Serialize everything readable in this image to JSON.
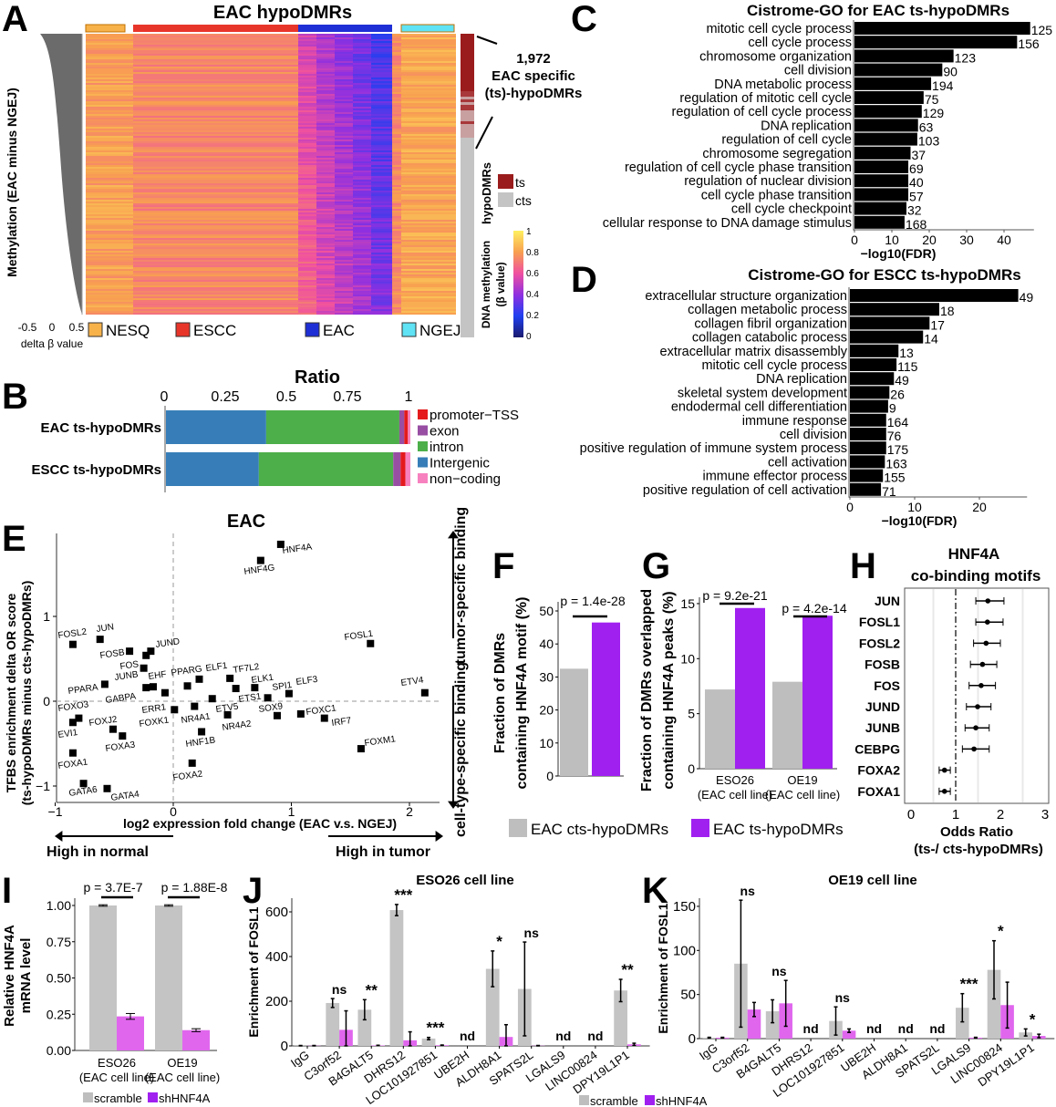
{
  "panel_letters": [
    "A",
    "B",
    "C",
    "D",
    "E",
    "F",
    "G",
    "H",
    "I",
    "J",
    "K"
  ],
  "panel_a": {
    "title": "EAC hypoDMRs",
    "y_label": "Methylation (EAC minus NGEJ)",
    "x_label": "delta β value",
    "x_ticks": [
      "-0.5",
      "0",
      "0.5"
    ],
    "groups": [
      {
        "name": "NESQ",
        "color": "#f7b24a"
      },
      {
        "name": "ESCC",
        "color": "#e8352a"
      },
      {
        "name": "EAC",
        "color": "#1f2fd6"
      },
      {
        "name": "NGEJ",
        "color": "#5fe3f5"
      }
    ],
    "annotation": [
      "1,972",
      "EAC specific",
      "(ts)-hypoDMRs"
    ],
    "hypo_label": "hypoDMRs",
    "hypo_legend": [
      {
        "name": "ts",
        "color": "#9b1c1c"
      },
      {
        "name": "cts",
        "color": "#c4c4c4"
      }
    ],
    "colorbar_label": [
      "DNA methylation",
      "(β value)"
    ],
    "colorbar_ticks": [
      "1",
      "0.8",
      "0.6",
      "0.4",
      "0.2",
      "0"
    ]
  },
  "chart_data": [
    {
      "panel": "B",
      "type": "bar",
      "orientation": "horizontal-stacked",
      "title": "Ratio",
      "x_ticks": [
        "0",
        "0.25",
        "0.5",
        "0.75",
        "1"
      ],
      "xlim": [
        0,
        1
      ],
      "categories": [
        "EAC ts-hypoDMRs",
        "ESCC ts-hypoDMRs"
      ],
      "legend": [
        {
          "name": "promoter−TSS",
          "color": "#e41a1c"
        },
        {
          "name": "exon",
          "color": "#984ea3"
        },
        {
          "name": "intron",
          "color": "#4daf4a"
        },
        {
          "name": "Intergenic",
          "color": "#377eb8"
        },
        {
          "name": "non−coding",
          "color": "#f781bf"
        }
      ],
      "series": [
        {
          "name": "Intergenic",
          "values": [
            0.41,
            0.38
          ]
        },
        {
          "name": "intron",
          "values": [
            0.545,
            0.55
          ]
        },
        {
          "name": "exon",
          "values": [
            0.02,
            0.03
          ]
        },
        {
          "name": "promoter−TSS",
          "values": [
            0.015,
            0.02
          ]
        },
        {
          "name": "non−coding",
          "values": [
            0.01,
            0.02
          ]
        }
      ]
    },
    {
      "panel": "C",
      "type": "bar",
      "orientation": "horizontal",
      "title": "Cistrome-GO for EAC ts-hypoDMRs",
      "xlabel": "−log10(FDR)",
      "x_ticks": [
        "0",
        "10",
        "20",
        "30",
        "40"
      ],
      "xlim": [
        0,
        48
      ],
      "categories": [
        "mitotic cell cycle process",
        "cell cycle process",
        "chromosome organization",
        "cell division",
        "DNA metabolic process",
        "regulation of mitotic cell cycle",
        "regulation of cell cycle process",
        "DNA replication",
        "regulation of cell cycle",
        "chromosome segregation",
        "regulation of cell cycle phase transition",
        "regulation of nuclear division",
        "cell cycle phase transition",
        "cell cycle checkpoint",
        "cellular response to DNA damage stimulus"
      ],
      "values": [
        47,
        43.5,
        26.5,
        23.5,
        20.5,
        18.5,
        18,
        17,
        16.8,
        15,
        14.4,
        14.4,
        14.4,
        13.9,
        13.4
      ],
      "labels": [
        "125",
        "156",
        "123",
        "90",
        "194",
        "75",
        "129",
        "63",
        "103",
        "37",
        "69",
        "40",
        "57",
        "32",
        "168"
      ]
    },
    {
      "panel": "D",
      "type": "bar",
      "orientation": "horizontal",
      "title": "Cistrome-GO for ESCC ts-hypoDMRs",
      "xlabel": "−log10(FDR)",
      "x_ticks": [
        "0",
        "10",
        "20"
      ],
      "xlim": [
        0,
        27
      ],
      "categories": [
        "extracellular structure organization",
        "collagen metabolic process",
        "collagen fibril organization",
        "collagen catabolic process",
        "extracellular matrix disassembly",
        "mitotic cell cycle process",
        "DNA replication",
        "skeletal system development",
        "endodermal cell differentiation",
        "immune response",
        "cell division",
        "positive regulation of immune system process",
        "cell activation",
        "immune effector process",
        "positive regulation of cell activation"
      ],
      "values": [
        26,
        13.8,
        12.3,
        11.3,
        7.5,
        7.2,
        6.8,
        6.1,
        5.9,
        5.6,
        5.6,
        5.6,
        5.4,
        5.1,
        4.8
      ],
      "labels": [
        "49",
        "18",
        "17",
        "14",
        "13",
        "115",
        "49",
        "26",
        "9",
        "164",
        "76",
        "175",
        "163",
        "155",
        "71"
      ]
    },
    {
      "panel": "E",
      "type": "scatter",
      "title": "EAC",
      "xlabel": "log2 expression fold change (EAC v.s. NGEJ)",
      "ylabel": [
        "TFBS enrichment delta OR score",
        "(ts-hypoDMRs minus cts-hypoDMRs)"
      ],
      "x_ticks": [
        "−1",
        "0",
        "1",
        "2"
      ],
      "y_ticks": [
        "1",
        "0",
        "−1"
      ],
      "xlim": [
        -1,
        2.25
      ],
      "ylim": [
        -1.15,
        1.95
      ],
      "annotations": {
        "top": "tumor-specific binding",
        "bottom": "cell-type-specific binding",
        "left": "High in normal",
        "right": "High in tumor"
      },
      "points": [
        {
          "label": "HNF4A",
          "x": 0.91,
          "y": 1.85
        },
        {
          "label": "HNF4G",
          "x": 0.74,
          "y": 1.66
        },
        {
          "label": "FOSL2",
          "x": -0.85,
          "y": 0.67
        },
        {
          "label": "JUN",
          "x": -0.62,
          "y": 0.73
        },
        {
          "label": "FOSB",
          "x": -0.37,
          "y": 0.59
        },
        {
          "label": "JUND",
          "x": -0.19,
          "y": 0.59
        },
        {
          "label": "FOS",
          "x": -0.23,
          "y": 0.54
        },
        {
          "label": "JUNB",
          "x": -0.25,
          "y": 0.39
        },
        {
          "label": "PPARA",
          "x": -0.58,
          "y": 0.2
        },
        {
          "label": "GABPA",
          "x": -0.23,
          "y": 0.16
        },
        {
          "label": "EHF",
          "x": -0.17,
          "y": 0.17
        },
        {
          "label": "ERR1",
          "x": -0.07,
          "y": 0.1
        },
        {
          "label": "PPARG",
          "x": 0.12,
          "y": 0.18
        },
        {
          "label": "ELF1",
          "x": 0.22,
          "y": 0.26
        },
        {
          "label": "TF7L2",
          "x": 0.48,
          "y": 0.27
        },
        {
          "label": "ETV5",
          "x": 0.33,
          "y": 0.03
        },
        {
          "label": "ETS1",
          "x": 0.53,
          "y": 0.15
        },
        {
          "label": "ELK1",
          "x": 0.69,
          "y": 0.16
        },
        {
          "label": "SPI1",
          "x": 0.8,
          "y": 0.04
        },
        {
          "label": "ELF3",
          "x": 0.98,
          "y": 0.09
        },
        {
          "label": "ETV4",
          "x": 2.13,
          "y": 0.1
        },
        {
          "label": "FOSL1",
          "x": 1.67,
          "y": 0.68
        },
        {
          "label": "FOXO3",
          "x": -0.8,
          "y": -0.2
        },
        {
          "label": "EVI1",
          "x": -0.85,
          "y": -0.25
        },
        {
          "label": "FOXJ2",
          "x": -0.51,
          "y": -0.33
        },
        {
          "label": "FOXA3",
          "x": -0.43,
          "y": -0.41
        },
        {
          "label": "FOXK1",
          "x": 0.01,
          "y": -0.1
        },
        {
          "label": "NR4A1",
          "x": 0.18,
          "y": -0.06
        },
        {
          "label": "NR4A2",
          "x": 0.46,
          "y": -0.16
        },
        {
          "label": "HNF1B",
          "x": 0.24,
          "y": -0.36
        },
        {
          "label": "SOX9",
          "x": 0.88,
          "y": -0.17
        },
        {
          "label": "FOXC1",
          "x": 1.08,
          "y": -0.15
        },
        {
          "label": "IRF7",
          "x": 1.28,
          "y": -0.2
        },
        {
          "label": "FOXM1",
          "x": 1.59,
          "y": -0.56
        },
        {
          "label": "FOXA1",
          "x": -0.85,
          "y": -0.61
        },
        {
          "label": "FOXA2",
          "x": 0.16,
          "y": -0.73
        },
        {
          "label": "GATA6",
          "x": -0.76,
          "y": -0.97
        },
        {
          "label": "GATA4",
          "x": -0.56,
          "y": -1.03
        }
      ]
    },
    {
      "panel": "F",
      "type": "bar",
      "ylabel": [
        "Fraction of DMRs",
        "containing HNF4A motif (%)"
      ],
      "y_ticks": [
        "0",
        "10",
        "20",
        "30",
        "40",
        "50"
      ],
      "ylim": [
        0,
        50
      ],
      "series": [
        {
          "name": "EAC cts-hypoDMRs",
          "values": [
            32.5
          ]
        },
        {
          "name": "EAC ts-hypoDMRs",
          "values": [
            46.5
          ]
        }
      ],
      "pvalue": "p = 1.4e-28"
    },
    {
      "panel": "G",
      "type": "bar",
      "ylabel": [
        "Fraction of DMRs overlapped",
        "containing HNF4A peaks (%)"
      ],
      "y_ticks": [
        "0",
        "5",
        "10",
        "15"
      ],
      "ylim": [
        0,
        15
      ],
      "categories": [
        [
          "ESO26",
          "(EAC cell line)"
        ],
        [
          "OE19",
          "(EAC cell line)"
        ]
      ],
      "series": [
        {
          "name": "EAC cts-hypoDMRs",
          "values": [
            7.2,
            7.9
          ]
        },
        {
          "name": "EAC ts-hypoDMRs",
          "values": [
            14.6,
            13.9
          ]
        }
      ],
      "pvalues": [
        "p = 9.2e-21",
        "p = 4.2e-14"
      ]
    },
    {
      "panel": "H",
      "type": "scatter",
      "subtype": "forest",
      "title": [
        "HNF4A",
        "co-binding motifs"
      ],
      "xlabel": [
        "Odds Ratio",
        "(ts-/ cts-hypoDMRs)"
      ],
      "x_ticks": [
        "0",
        "1",
        "2",
        "3"
      ],
      "xlim": [
        0,
        3
      ],
      "reference_line": 1,
      "categories": [
        "JUN",
        "FOSL1",
        "FOSL2",
        "FOSB",
        "FOS",
        "JUND",
        "JUNB",
        "CEBPG",
        "FOXA2",
        "FOXA1"
      ],
      "values": [
        1.72,
        1.71,
        1.68,
        1.6,
        1.57,
        1.49,
        1.45,
        1.41,
        0.75,
        0.75
      ],
      "ci_low": [
        1.45,
        1.45,
        1.4,
        1.33,
        1.3,
        1.24,
        1.21,
        1.15,
        0.63,
        0.63
      ],
      "ci_high": [
        2.08,
        2.06,
        2.0,
        1.92,
        1.89,
        1.79,
        1.75,
        1.75,
        0.88,
        0.88
      ]
    },
    {
      "panel": "I",
      "type": "bar",
      "ylabel": [
        "Relative HNF4A",
        "mRNA level"
      ],
      "y_ticks": [
        "0.00",
        "0.25",
        "0.50",
        "0.75",
        "1.00"
      ],
      "ylim": [
        0,
        1
      ],
      "categories": [
        [
          "ESO26",
          "(EAC cell line)"
        ],
        [
          "OE19",
          "(EAC cell line)"
        ]
      ],
      "series": [
        {
          "name": "scramble",
          "values": [
            1.0,
            1.0
          ],
          "err": [
            0.005,
            0.005
          ]
        },
        {
          "name": "shHNF4A",
          "values": [
            0.235,
            0.14
          ],
          "err": [
            0.02,
            0.01
          ]
        }
      ],
      "pvalues": [
        "p = 3.7E-7",
        "p = 1.88E-8"
      ]
    },
    {
      "panel": "J",
      "type": "bar",
      "title": "ESO26 cell line",
      "ylabel": "Enrichment of FOSL1",
      "y_ticks": [
        "0",
        "200",
        "400",
        "600"
      ],
      "ylim": [
        0,
        650
      ],
      "categories": [
        "IgG",
        "C3orf52",
        "B4GALT5",
        "DHRS12",
        "LOC101927851",
        "UBE2H",
        "ALDH8A1",
        "SPATS2L",
        "LGALS9",
        "LINC00824",
        "DPY19L1P1"
      ],
      "series": [
        {
          "name": "scramble",
          "values": [
            1,
            192,
            162,
            608,
            33,
            0,
            345,
            255,
            0,
            0,
            248
          ],
          "err": [
            1,
            20,
            45,
            25,
            5,
            0,
            80,
            210,
            0,
            0,
            50
          ]
        },
        {
          "name": "shHNF4A",
          "values": [
            1,
            72,
            2,
            25,
            3,
            0,
            40,
            1,
            0,
            0,
            7
          ],
          "err": [
            1,
            85,
            1,
            38,
            1,
            0,
            55,
            1,
            0,
            0,
            5
          ]
        }
      ],
      "significance": [
        "",
        "ns",
        "**",
        "***",
        "***",
        "nd",
        "*",
        "ns",
        "nd",
        "nd",
        "**"
      ]
    },
    {
      "panel": "K",
      "type": "bar",
      "title": "OE19 cell line",
      "ylabel": "Enrichment of FOSL1",
      "y_ticks": [
        "0",
        "50",
        "100",
        "150"
      ],
      "ylim": [
        0,
        160
      ],
      "categories": [
        "IgG",
        "C3orf52",
        "B4GALT5",
        "DHRS12",
        "LOC101927851",
        "UBE2H",
        "ALDH8A1",
        "SPATS2L",
        "LGALS9",
        "LINC00824",
        "DPY19L1P1"
      ],
      "series": [
        {
          "name": "scramble",
          "values": [
            1,
            85,
            31,
            0,
            20,
            0,
            0,
            0,
            35,
            78,
            7
          ],
          "err": [
            0.5,
            72,
            13,
            0,
            16,
            0,
            0,
            0,
            16,
            33,
            4
          ]
        },
        {
          "name": "shHNF4A",
          "values": [
            1,
            33,
            40,
            0,
            9,
            0,
            0,
            0,
            1,
            38,
            3
          ],
          "err": [
            0.5,
            8,
            26,
            0,
            2,
            0,
            0,
            0,
            0.5,
            26,
            2
          ]
        }
      ],
      "significance": [
        "",
        "ns",
        "ns",
        "nd",
        "ns",
        "nd",
        "nd",
        "nd",
        "***",
        "*",
        "*"
      ]
    }
  ],
  "legend_fg": [
    {
      "name": "EAC cts-hypoDMRs",
      "color": "#bebebe"
    },
    {
      "name": "EAC ts-hypoDMRs",
      "color": "#a020f0"
    }
  ],
  "legend_ijk": [
    {
      "name": "scramble",
      "color": "#bebebe"
    },
    {
      "name": "shHNF4A",
      "color": "#a020f0"
    }
  ],
  "colors": {
    "scramble_bar": "#c4c4c4",
    "shHNF4A_bar": "#e066ee",
    "ts_bar": "#a020f0",
    "cts_bar": "#bebebe"
  }
}
